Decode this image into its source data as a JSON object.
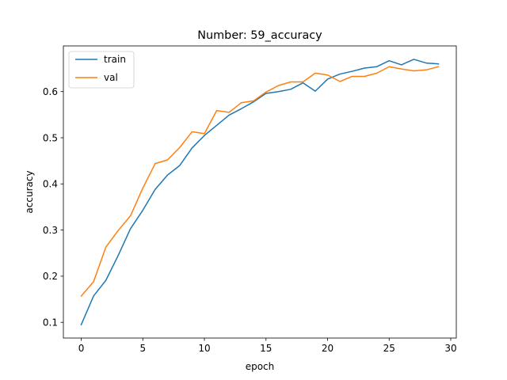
{
  "chart_data": {
    "type": "line",
    "title": "Number: 59_accuracy",
    "xlabel": "epoch",
    "ylabel": "accuracy",
    "xlim": [
      -1.45,
      30.45
    ],
    "ylim": [
      0.066,
      0.699
    ],
    "xticks": [
      0,
      5,
      10,
      15,
      20,
      25,
      30
    ],
    "yticks": [
      0.1,
      0.2,
      0.3,
      0.4,
      0.5,
      0.6
    ],
    "xtick_labels": [
      "0",
      "5",
      "10",
      "15",
      "20",
      "25",
      "30"
    ],
    "ytick_labels": [
      "0.1",
      "0.2",
      "0.3",
      "0.4",
      "0.5",
      "0.6"
    ],
    "grid": false,
    "legend_position": "top-left",
    "x": [
      0,
      1,
      2,
      3,
      4,
      5,
      6,
      7,
      8,
      9,
      10,
      11,
      12,
      13,
      14,
      15,
      16,
      17,
      18,
      19,
      20,
      21,
      22,
      23,
      24,
      25,
      26,
      27,
      28,
      29
    ],
    "series": [
      {
        "name": "train",
        "color": "#1f77b4",
        "values": [
          0.095,
          0.157,
          0.191,
          0.245,
          0.303,
          0.343,
          0.388,
          0.419,
          0.44,
          0.478,
          0.505,
          0.527,
          0.549,
          0.563,
          0.578,
          0.596,
          0.6,
          0.605,
          0.619,
          0.601,
          0.627,
          0.638,
          0.644,
          0.651,
          0.654,
          0.667,
          0.658,
          0.67,
          0.662,
          0.66
        ]
      },
      {
        "name": "val",
        "color": "#ff7f0e",
        "values": [
          0.157,
          0.188,
          0.263,
          0.299,
          0.331,
          0.391,
          0.444,
          0.452,
          0.479,
          0.513,
          0.509,
          0.559,
          0.555,
          0.576,
          0.58,
          0.599,
          0.613,
          0.621,
          0.621,
          0.64,
          0.636,
          0.622,
          0.633,
          0.633,
          0.64,
          0.654,
          0.649,
          0.645,
          0.647,
          0.654
        ]
      }
    ]
  }
}
